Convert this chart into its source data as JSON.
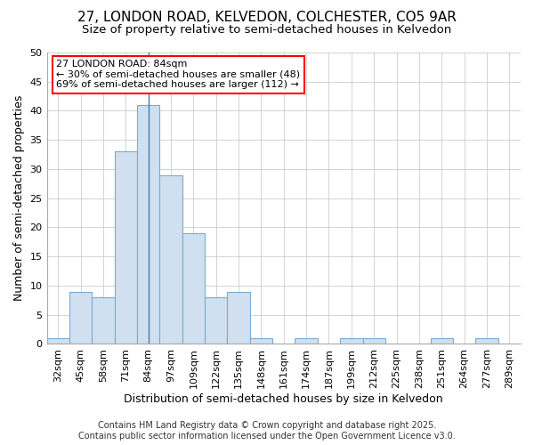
{
  "title_line1": "27, LONDON ROAD, KELVEDON, COLCHESTER, CO5 9AR",
  "title_line2": "Size of property relative to semi-detached houses in Kelvedon",
  "xlabel": "Distribution of semi-detached houses by size in Kelvedon",
  "ylabel": "Number of semi-detached properties",
  "categories": [
    "32sqm",
    "45sqm",
    "58sqm",
    "71sqm",
    "84sqm",
    "97sqm",
    "109sqm",
    "122sqm",
    "135sqm",
    "148sqm",
    "161sqm",
    "174sqm",
    "187sqm",
    "199sqm",
    "212sqm",
    "225sqm",
    "238sqm",
    "251sqm",
    "264sqm",
    "277sqm",
    "289sqm"
  ],
  "values": [
    1,
    9,
    8,
    33,
    41,
    29,
    19,
    8,
    9,
    1,
    0,
    1,
    0,
    1,
    1,
    0,
    0,
    1,
    0,
    1,
    0
  ],
  "bar_color": "#d0e0f0",
  "bar_edge_color": "#7aaad0",
  "highlight_index": 4,
  "highlight_line_color": "#4477bb",
  "annotation_line1": "27 LONDON ROAD: 84sqm",
  "annotation_line2": "← 30% of semi-detached houses are smaller (48)",
  "annotation_line3": "69% of semi-detached houses are larger (112) →",
  "annotation_box_color": "white",
  "annotation_box_edge_color": "red",
  "ylim": [
    0,
    50
  ],
  "yticks": [
    0,
    5,
    10,
    15,
    20,
    25,
    30,
    35,
    40,
    45,
    50
  ],
  "grid_color": "#cccccc",
  "background_color": "#ffffff",
  "footer_line1": "Contains HM Land Registry data © Crown copyright and database right 2025.",
  "footer_line2": "Contains public sector information licensed under the Open Government Licence v3.0.",
  "title_fontsize": 11,
  "subtitle_fontsize": 9.5,
  "axis_label_fontsize": 9,
  "tick_fontsize": 8,
  "annotation_fontsize": 8,
  "footer_fontsize": 7
}
